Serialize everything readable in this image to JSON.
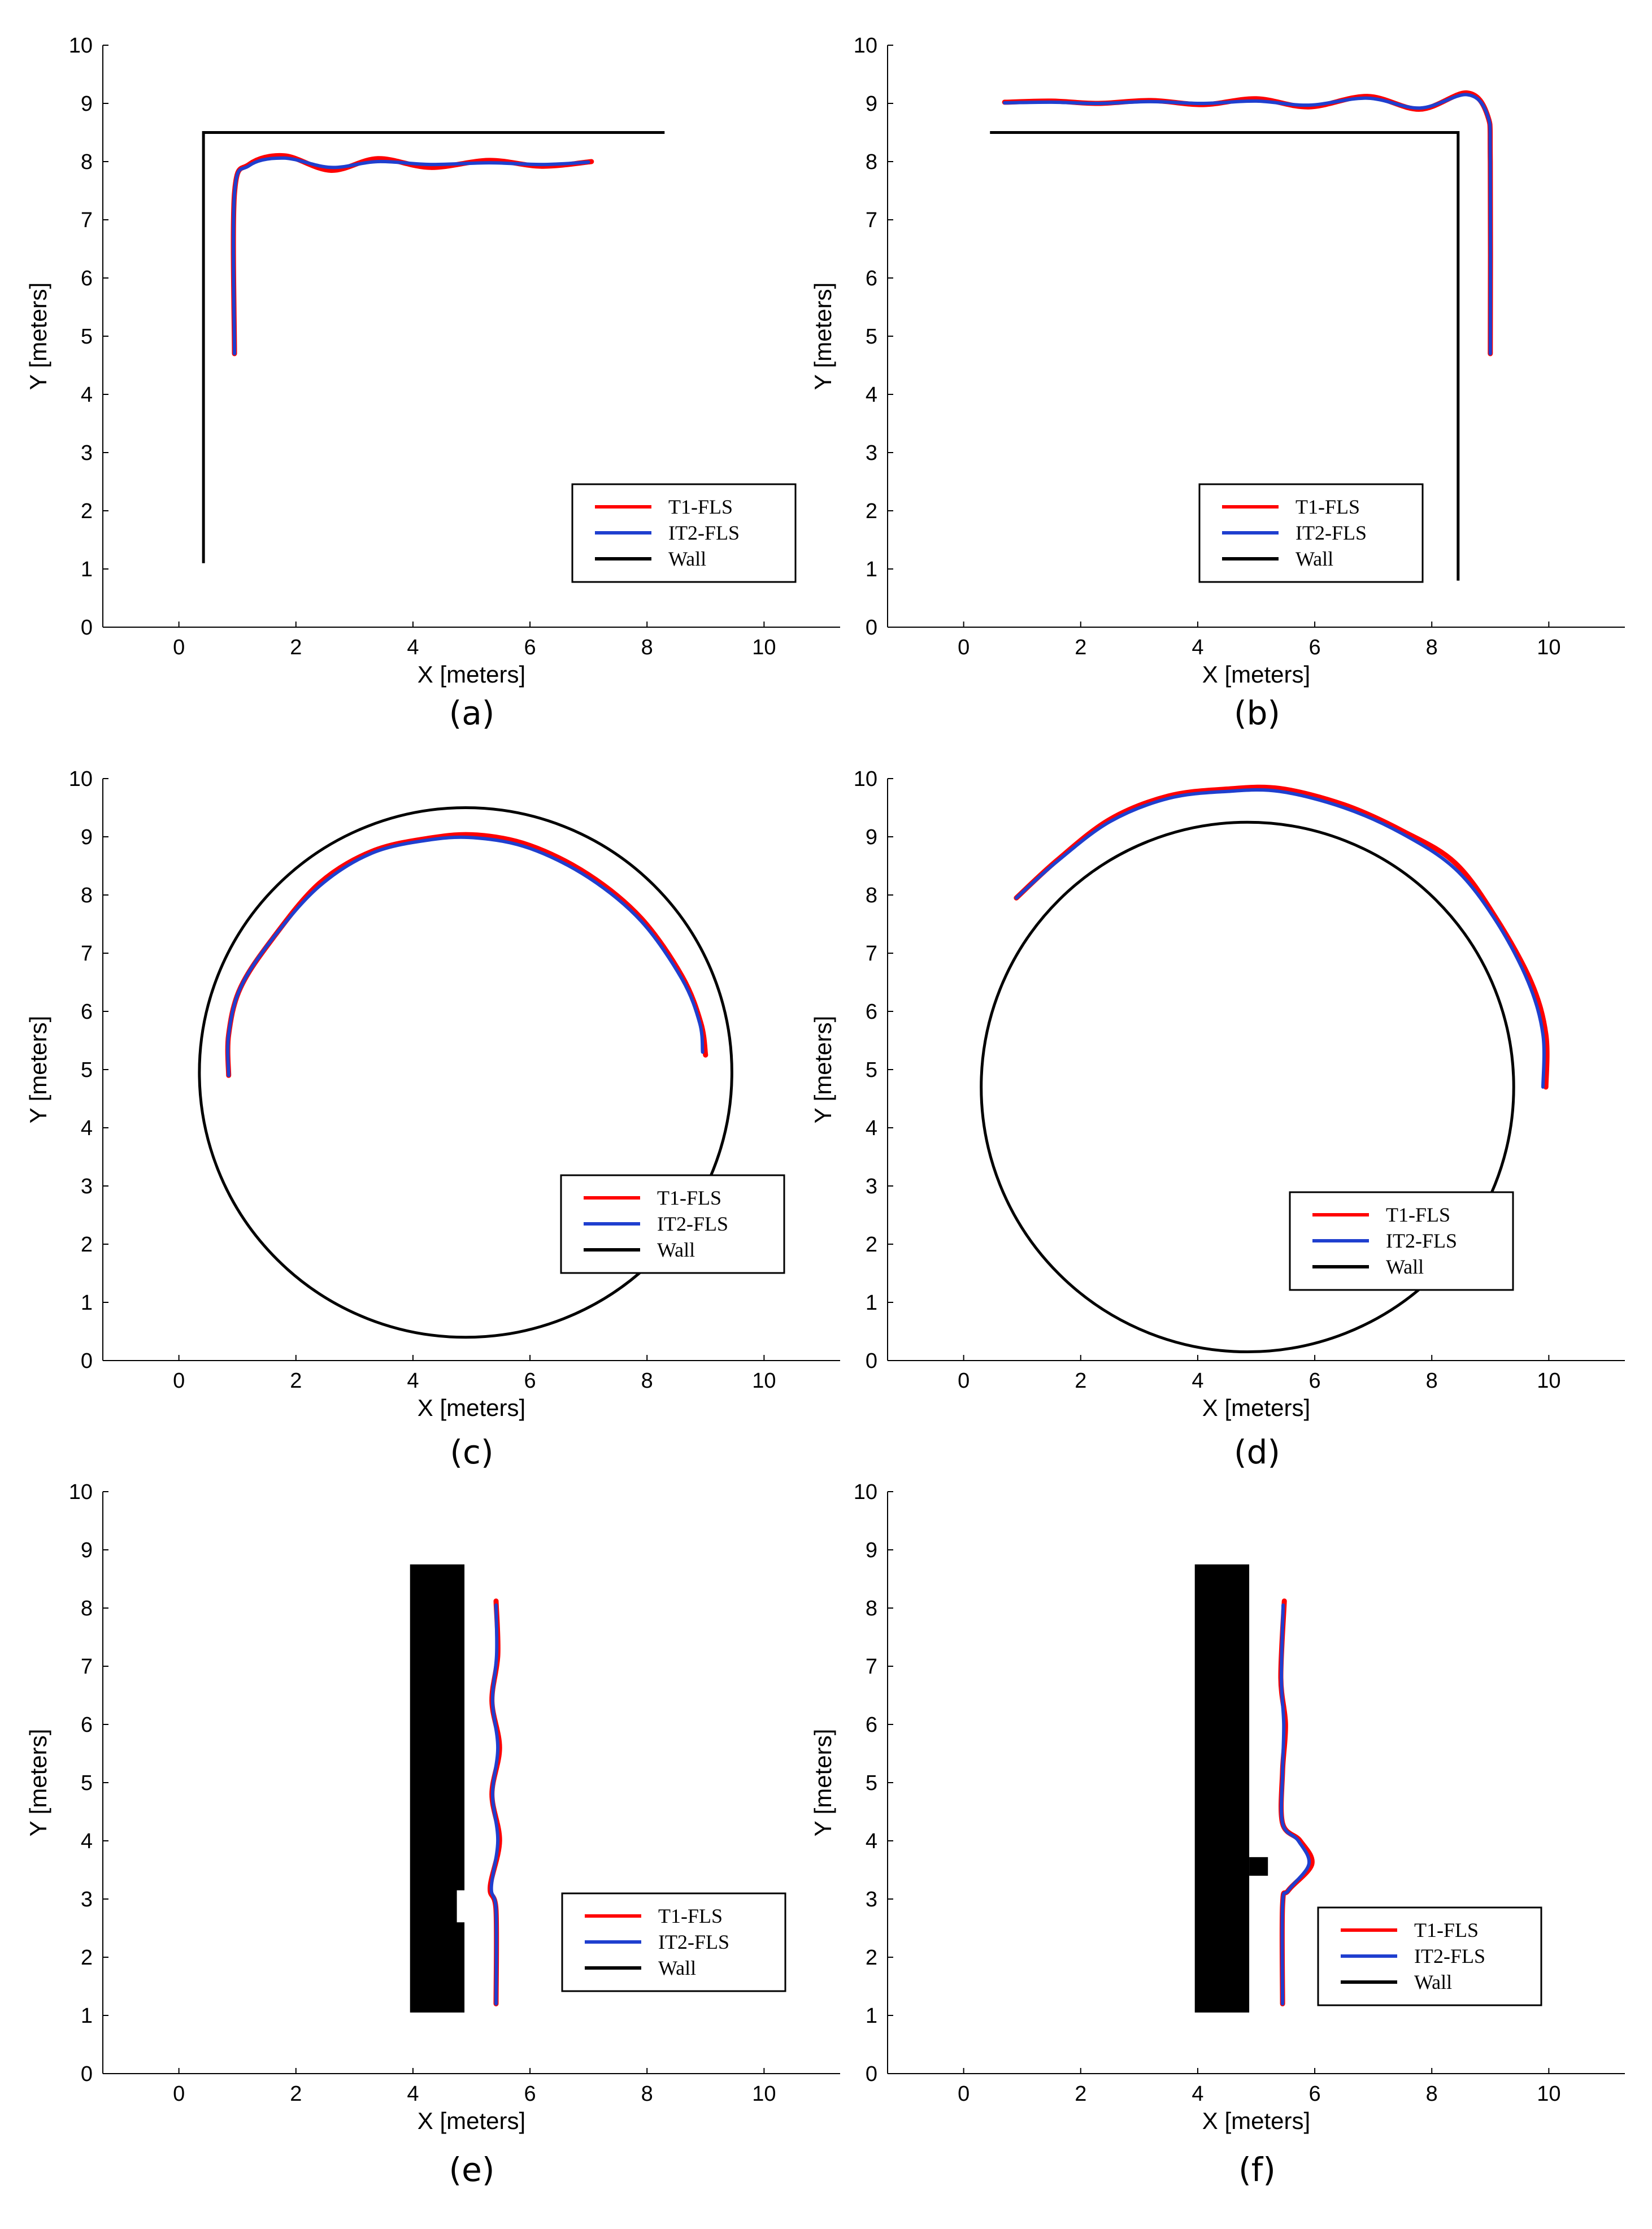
{
  "colors": {
    "t1": "#ff0000",
    "it2": "#1f3fcf",
    "wall": "#000000"
  },
  "chart_data": [
    {
      "type": "line",
      "panel_label": "(a)",
      "xlabel": "X [meters]",
      "ylabel": "Y [meters]",
      "xlim": [
        -1.3,
        11.3
      ],
      "ylim": [
        0,
        10
      ],
      "xticks": [
        0,
        2,
        4,
        6,
        8,
        10
      ],
      "yticks": [
        0,
        1,
        2,
        3,
        4,
        5,
        6,
        7,
        8,
        9,
        10
      ],
      "legend": {
        "position": "lower-right",
        "entries": [
          "T1-FLS",
          "IT2-FLS",
          "Wall"
        ]
      },
      "walls": [
        {
          "kind": "polyline",
          "points": [
            [
              0.42,
              1.1
            ],
            [
              0.42,
              8.5
            ],
            [
              8.3,
              8.5
            ]
          ]
        }
      ],
      "series": [
        {
          "name": "T1-FLS",
          "points": [
            [
              0.95,
              4.7
            ],
            [
              0.95,
              7.45
            ],
            [
              1.2,
              7.95
            ],
            [
              1.8,
              8.1
            ],
            [
              2.6,
              7.85
            ],
            [
              3.4,
              8.05
            ],
            [
              4.3,
              7.9
            ],
            [
              5.3,
              8.02
            ],
            [
              6.2,
              7.92
            ],
            [
              7.05,
              8.0
            ]
          ]
        },
        {
          "name": "IT2-FLS",
          "points": [
            [
              0.95,
              4.7
            ],
            [
              0.95,
              7.45
            ],
            [
              1.2,
              7.93
            ],
            [
              1.8,
              8.06
            ],
            [
              2.6,
              7.9
            ],
            [
              3.4,
              8.0
            ],
            [
              4.3,
              7.95
            ],
            [
              5.3,
              7.98
            ],
            [
              6.2,
              7.95
            ],
            [
              7.0,
              7.99
            ]
          ]
        }
      ]
    },
    {
      "type": "line",
      "panel_label": "(b)",
      "xlabel": "X [meters]",
      "ylabel": "Y [meters]",
      "xlim": [
        -1.3,
        11.3
      ],
      "ylim": [
        0,
        10
      ],
      "xticks": [
        0,
        2,
        4,
        6,
        8,
        10
      ],
      "yticks": [
        0,
        1,
        2,
        3,
        4,
        5,
        6,
        7,
        8,
        9,
        10
      ],
      "legend": {
        "position": "lower-right",
        "entries": [
          "T1-FLS",
          "IT2-FLS",
          "Wall"
        ]
      },
      "walls": [
        {
          "kind": "polyline",
          "points": [
            [
              0.45,
              8.5
            ],
            [
              8.45,
              8.5
            ],
            [
              8.45,
              0.8
            ]
          ]
        }
      ],
      "series": [
        {
          "name": "T1-FLS",
          "points": [
            [
              0.7,
              9.02
            ],
            [
              1.5,
              9.04
            ],
            [
              2.3,
              9.0
            ],
            [
              3.2,
              9.05
            ],
            [
              4.1,
              8.98
            ],
            [
              5.0,
              9.08
            ],
            [
              5.9,
              8.94
            ],
            [
              6.9,
              9.12
            ],
            [
              7.8,
              8.9
            ],
            [
              8.6,
              9.18
            ],
            [
              8.95,
              8.8
            ],
            [
              9.0,
              8.0
            ],
            [
              9.0,
              4.7
            ]
          ]
        },
        {
          "name": "IT2-FLS",
          "points": [
            [
              0.7,
              9.01
            ],
            [
              1.5,
              9.02
            ],
            [
              2.3,
              9.0
            ],
            [
              3.2,
              9.03
            ],
            [
              4.1,
              9.0
            ],
            [
              5.0,
              9.04
            ],
            [
              5.9,
              8.97
            ],
            [
              6.9,
              9.09
            ],
            [
              7.8,
              8.92
            ],
            [
              8.6,
              9.15
            ],
            [
              8.95,
              8.8
            ],
            [
              9.0,
              8.0
            ],
            [
              9.0,
              4.7
            ]
          ]
        }
      ]
    },
    {
      "type": "line",
      "panel_label": "(c)",
      "xlabel": "X [meters]",
      "ylabel": "Y [meters]",
      "xlim": [
        -1.3,
        11.3
      ],
      "ylim": [
        0,
        10
      ],
      "xticks": [
        0,
        2,
        4,
        6,
        8,
        10
      ],
      "yticks": [
        0,
        1,
        2,
        3,
        4,
        5,
        6,
        7,
        8,
        9,
        10
      ],
      "legend": {
        "position": "lower-right",
        "entries": [
          "T1-FLS",
          "IT2-FLS",
          "Wall"
        ]
      },
      "walls": [
        {
          "kind": "circle",
          "center": [
            4.9,
            4.95
          ],
          "radius": 4.55
        }
      ],
      "series": [
        {
          "name": "T1-FLS",
          "points": [
            [
              0.85,
              4.9
            ],
            [
              0.85,
              5.6
            ],
            [
              1.05,
              6.4
            ],
            [
              1.6,
              7.25
            ],
            [
              2.4,
              8.2
            ],
            [
              3.3,
              8.75
            ],
            [
              4.3,
              8.98
            ],
            [
              5.1,
              9.03
            ],
            [
              6.0,
              8.85
            ],
            [
              7.0,
              8.35
            ],
            [
              7.9,
              7.6
            ],
            [
              8.6,
              6.6
            ],
            [
              8.92,
              5.8
            ],
            [
              9.0,
              5.25
            ]
          ]
        },
        {
          "name": "IT2-FLS",
          "points": [
            [
              0.85,
              4.9
            ],
            [
              0.85,
              5.6
            ],
            [
              1.05,
              6.4
            ],
            [
              1.6,
              7.25
            ],
            [
              2.4,
              8.15
            ],
            [
              3.3,
              8.72
            ],
            [
              4.3,
              8.95
            ],
            [
              5.1,
              8.98
            ],
            [
              6.0,
              8.8
            ],
            [
              7.0,
              8.3
            ],
            [
              7.9,
              7.55
            ],
            [
              8.6,
              6.55
            ],
            [
              8.9,
              5.8
            ],
            [
              8.95,
              5.3
            ]
          ]
        }
      ]
    },
    {
      "type": "line",
      "panel_label": "(d)",
      "xlabel": "X [meters]",
      "ylabel": "Y [meters]",
      "xlim": [
        -1.3,
        11.3
      ],
      "ylim": [
        0,
        10
      ],
      "xticks": [
        0,
        2,
        4,
        6,
        8,
        10
      ],
      "yticks": [
        0,
        1,
        2,
        3,
        4,
        5,
        6,
        7,
        8,
        9,
        10
      ],
      "legend": {
        "position": "lower-right",
        "entries": [
          "T1-FLS",
          "IT2-FLS",
          "Wall"
        ]
      },
      "walls": [
        {
          "kind": "circle",
          "center": [
            4.85,
            4.7
          ],
          "radius": 4.55
        }
      ],
      "series": [
        {
          "name": "T1-FLS",
          "points": [
            [
              0.9,
              7.95
            ],
            [
              1.6,
              8.6
            ],
            [
              2.5,
              9.3
            ],
            [
              3.5,
              9.7
            ],
            [
              4.5,
              9.82
            ],
            [
              5.4,
              9.83
            ],
            [
              6.5,
              9.55
            ],
            [
              7.5,
              9.1
            ],
            [
              8.4,
              8.55
            ],
            [
              9.1,
              7.6
            ],
            [
              9.7,
              6.5
            ],
            [
              9.95,
              5.6
            ],
            [
              9.95,
              4.7
            ]
          ]
        },
        {
          "name": "IT2-FLS",
          "points": [
            [
              0.9,
              7.95
            ],
            [
              1.6,
              8.58
            ],
            [
              2.5,
              9.26
            ],
            [
              3.5,
              9.66
            ],
            [
              4.5,
              9.78
            ],
            [
              5.4,
              9.78
            ],
            [
              6.5,
              9.5
            ],
            [
              7.5,
              9.05
            ],
            [
              8.4,
              8.45
            ],
            [
              9.1,
              7.55
            ],
            [
              9.65,
              6.5
            ],
            [
              9.9,
              5.6
            ],
            [
              9.9,
              4.7
            ]
          ]
        }
      ]
    },
    {
      "type": "line",
      "panel_label": "(e)",
      "xlabel": "X [meters]",
      "ylabel": "Y [meters]",
      "xlim": [
        -1.3,
        11.3
      ],
      "ylim": [
        0,
        10
      ],
      "xticks": [
        0,
        2,
        4,
        6,
        8,
        10
      ],
      "yticks": [
        0,
        1,
        2,
        3,
        4,
        5,
        6,
        7,
        8,
        9,
        10
      ],
      "legend": {
        "position": "lower-right",
        "entries": [
          "T1-FLS",
          "IT2-FLS",
          "Wall"
        ]
      },
      "walls": [
        {
          "kind": "rect",
          "x": [
            3.95,
            4.88
          ],
          "y": [
            1.05,
            8.75
          ]
        },
        {
          "kind": "notch",
          "x": [
            4.75,
            4.9
          ],
          "y": [
            2.6,
            3.15
          ]
        }
      ],
      "series": [
        {
          "name": "T1-FLS",
          "points": [
            [
              5.42,
              1.2
            ],
            [
              5.42,
              2.8
            ],
            [
              5.32,
              3.2
            ],
            [
              5.48,
              4.0
            ],
            [
              5.35,
              4.8
            ],
            [
              5.48,
              5.6
            ],
            [
              5.35,
              6.4
            ],
            [
              5.45,
              7.2
            ],
            [
              5.42,
              8.12
            ]
          ]
        },
        {
          "name": "IT2-FLS",
          "points": [
            [
              5.42,
              1.2
            ],
            [
              5.42,
              2.8
            ],
            [
              5.34,
              3.2
            ],
            [
              5.45,
              4.0
            ],
            [
              5.36,
              4.8
            ],
            [
              5.45,
              5.6
            ],
            [
              5.36,
              6.4
            ],
            [
              5.43,
              7.2
            ],
            [
              5.42,
              8.05
            ]
          ]
        }
      ]
    },
    {
      "type": "line",
      "panel_label": "(f)",
      "xlabel": "X [meters]",
      "ylabel": "Y [meters]",
      "xlim": [
        -1.3,
        11.3
      ],
      "ylim": [
        0,
        10
      ],
      "xticks": [
        0,
        2,
        4,
        6,
        8,
        10
      ],
      "yticks": [
        0,
        1,
        2,
        3,
        4,
        5,
        6,
        7,
        8,
        9,
        10
      ],
      "legend": {
        "position": "lower-right",
        "entries": [
          "T1-FLS",
          "IT2-FLS",
          "Wall"
        ]
      },
      "walls": [
        {
          "kind": "rect",
          "x": [
            3.95,
            4.88
          ],
          "y": [
            1.05,
            8.75
          ]
        },
        {
          "kind": "rect",
          "x": [
            4.88,
            5.2
          ],
          "y": [
            3.4,
            3.72
          ]
        }
      ],
      "series": [
        {
          "name": "T1-FLS",
          "points": [
            [
              5.45,
              1.2
            ],
            [
              5.45,
              2.9
            ],
            [
              5.55,
              3.15
            ],
            [
              5.95,
              3.6
            ],
            [
              5.75,
              4.0
            ],
            [
              5.45,
              4.3
            ],
            [
              5.45,
              5.2
            ],
            [
              5.5,
              6.0
            ],
            [
              5.42,
              6.8
            ],
            [
              5.48,
              8.12
            ]
          ]
        },
        {
          "name": "IT2-FLS",
          "points": [
            [
              5.45,
              1.2
            ],
            [
              5.45,
              2.9
            ],
            [
              5.55,
              3.15
            ],
            [
              5.9,
              3.6
            ],
            [
              5.72,
              4.0
            ],
            [
              5.45,
              4.3
            ],
            [
              5.45,
              5.2
            ],
            [
              5.47,
              6.0
            ],
            [
              5.43,
              6.8
            ],
            [
              5.46,
              8.05
            ]
          ]
        }
      ]
    }
  ]
}
